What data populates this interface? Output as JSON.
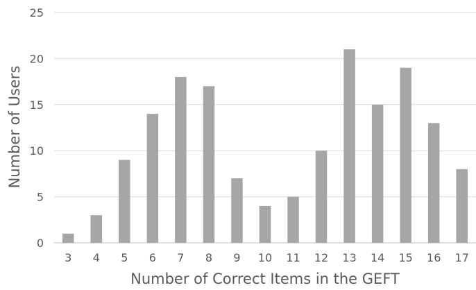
{
  "chart_data": {
    "type": "bar",
    "title": "",
    "xlabel": "Number of Correct Items in the GEFT",
    "ylabel": "Number of Users",
    "categories": [
      "3",
      "4",
      "5",
      "6",
      "7",
      "8",
      "9",
      "10",
      "11",
      "12",
      "13",
      "14",
      "15",
      "16",
      "17"
    ],
    "values": [
      1,
      3,
      9,
      14,
      18,
      17,
      7,
      4,
      5,
      10,
      21,
      15,
      19,
      13,
      8
    ],
    "ylim": [
      0,
      25
    ],
    "yticks": [
      "0",
      "5",
      "10",
      "15",
      "20",
      "25"
    ],
    "grid": true,
    "bar_color": "#a6a6a6",
    "grid_color": "#d9d9d9"
  }
}
